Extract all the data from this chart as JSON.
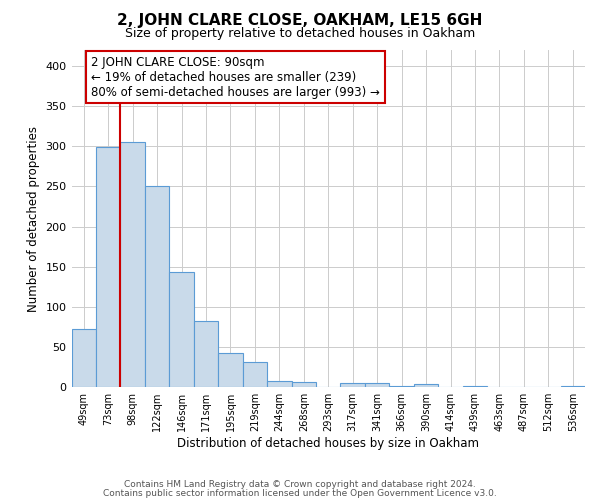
{
  "title": "2, JOHN CLARE CLOSE, OAKHAM, LE15 6GH",
  "subtitle": "Size of property relative to detached houses in Oakham",
  "xlabel": "Distribution of detached houses by size in Oakham",
  "ylabel": "Number of detached properties",
  "bar_labels": [
    "49sqm",
    "73sqm",
    "98sqm",
    "122sqm",
    "146sqm",
    "171sqm",
    "195sqm",
    "219sqm",
    "244sqm",
    "268sqm",
    "293sqm",
    "317sqm",
    "341sqm",
    "366sqm",
    "390sqm",
    "414sqm",
    "439sqm",
    "463sqm",
    "487sqm",
    "512sqm",
    "536sqm"
  ],
  "bar_heights": [
    73,
    299,
    305,
    250,
    144,
    82,
    43,
    32,
    8,
    7,
    0,
    5,
    5,
    2,
    4,
    0,
    2,
    0,
    0,
    0,
    2
  ],
  "bar_color": "#c9daea",
  "bar_edge_color": "#5b9bd5",
  "vline_color": "#cc0000",
  "annotation_title": "2 JOHN CLARE CLOSE: 90sqm",
  "annotation_line1": "← 19% of detached houses are smaller (239)",
  "annotation_line2": "80% of semi-detached houses are larger (993) →",
  "annotation_box_color": "#ffffff",
  "annotation_box_edge": "#cc0000",
  "ylim": [
    0,
    420
  ],
  "yticks": [
    0,
    50,
    100,
    150,
    200,
    250,
    300,
    350,
    400
  ],
  "footer1": "Contains HM Land Registry data © Crown copyright and database right 2024.",
  "footer2": "Contains public sector information licensed under the Open Government Licence v3.0.",
  "background_color": "#ffffff",
  "grid_color": "#cccccc"
}
